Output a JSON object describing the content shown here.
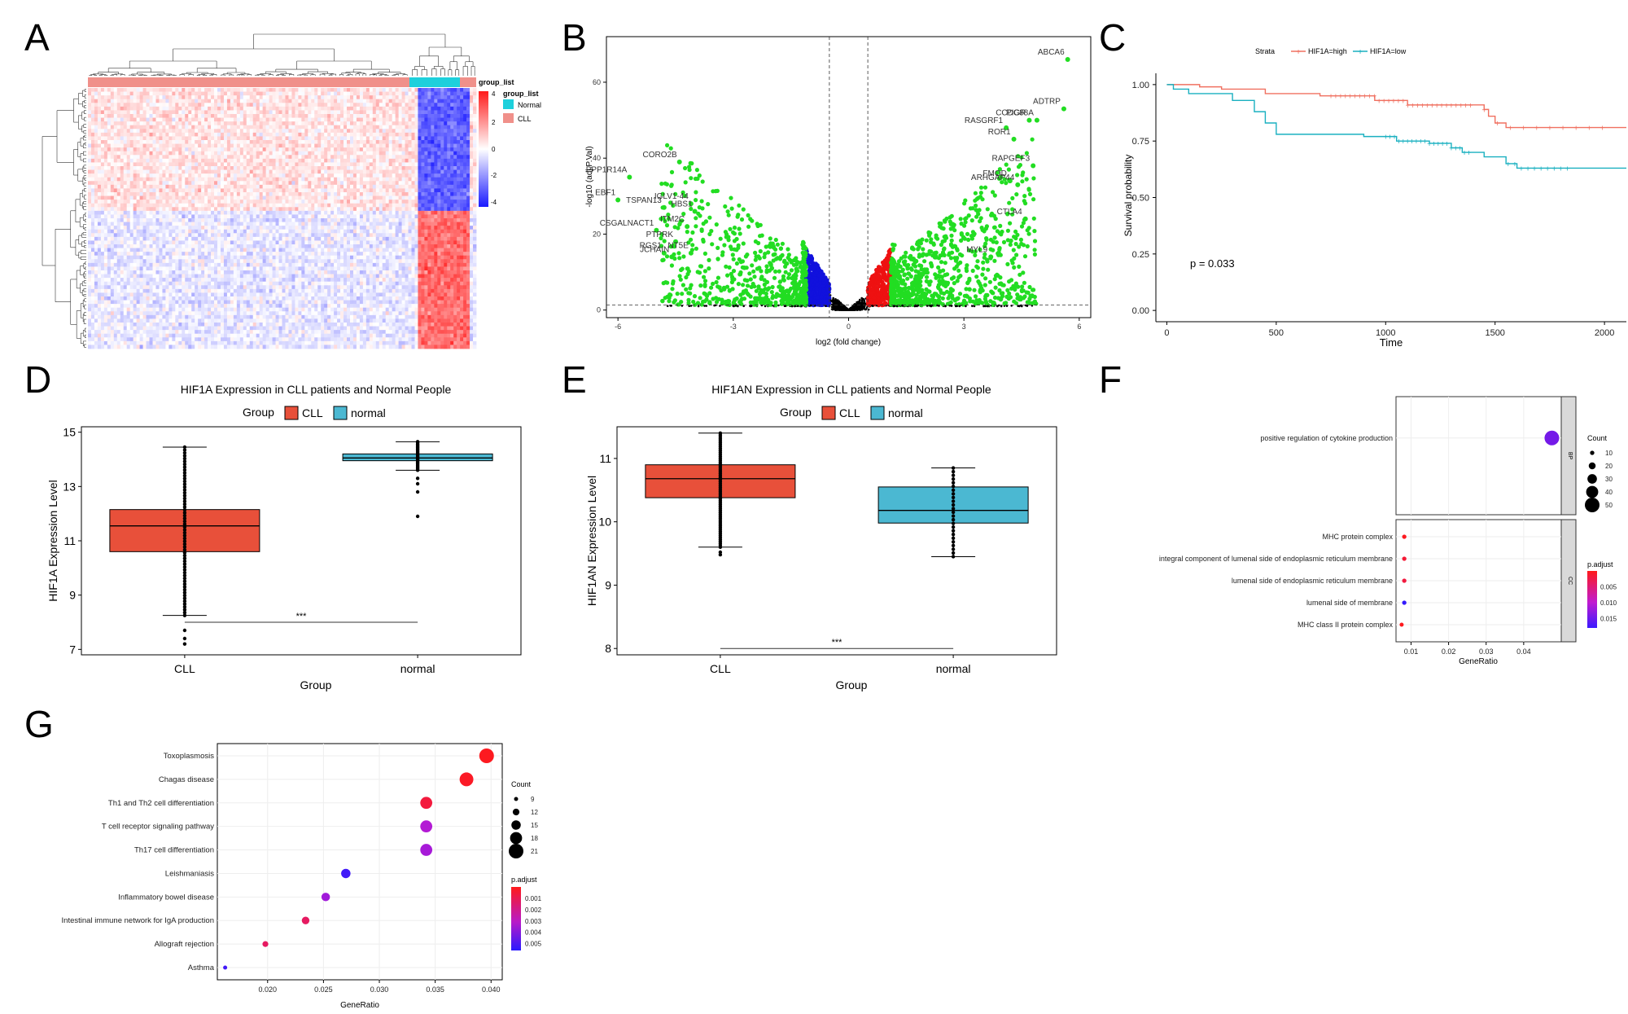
{
  "panel_letters": [
    "A",
    "B",
    "C",
    "D",
    "E",
    "F",
    "G"
  ],
  "colors": {
    "cll": "#e8503a",
    "normal": "#4bb8d2",
    "green": "#22dd22",
    "red": "#ee1111",
    "blue": "#1111dd",
    "km_high": "#f07060",
    "km_low": "#1ab0c0"
  },
  "chart_data": [
    {
      "panel": "A",
      "type": "heatmap",
      "legend_title": "group_list",
      "legend_entries": [
        "Normal",
        "CLL"
      ],
      "colorbar_ticks": [
        "4",
        "2",
        "0",
        "-2",
        "-4"
      ],
      "row_count": 70,
      "column_count": 120,
      "normal_column_fraction": 0.13
    },
    {
      "panel": "B",
      "type": "scatter",
      "xlabel": "log2 (fold change)",
      "ylabel": "-log10 (adj.P.Val)",
      "xlim": [
        -6.3,
        6.3
      ],
      "ylim": [
        -2,
        72
      ],
      "x_ticks": [
        -6,
        -3,
        0,
        3,
        6
      ],
      "y_ticks": [
        0,
        20,
        40,
        60
      ],
      "threshold_x": [
        -0.5,
        0.5
      ],
      "threshold_y": 1.3,
      "labeled_points": [
        {
          "label": "ABCA6",
          "x": 5.7,
          "y": 66
        },
        {
          "label": "ADTRP",
          "x": 5.6,
          "y": 53
        },
        {
          "label": "PIGR",
          "x": 4.7,
          "y": 50
        },
        {
          "label": "CCDC88A",
          "x": 4.9,
          "y": 50
        },
        {
          "label": "RASGRF1",
          "x": 4.1,
          "y": 48
        },
        {
          "label": "ROR1",
          "x": 4.3,
          "y": 45
        },
        {
          "label": "RAPGEF3",
          "x": 4.8,
          "y": 38
        },
        {
          "label": "FMOD",
          "x": 4.2,
          "y": 34
        },
        {
          "label": "ARHGAP44",
          "x": 4.4,
          "y": 33
        },
        {
          "label": "CTLA4",
          "x": 4.6,
          "y": 24
        },
        {
          "label": "MYL9",
          "x": 3.7,
          "y": 14
        },
        {
          "label": "CORO2B",
          "x": -4.4,
          "y": 39
        },
        {
          "label": "PPP1R14A",
          "x": -5.7,
          "y": 35
        },
        {
          "label": "EBF1",
          "x": -6.0,
          "y": 29
        },
        {
          "label": "IGLV1-44",
          "x": -4.1,
          "y": 28
        },
        {
          "label": "HBS1",
          "x": -4.0,
          "y": 26
        },
        {
          "label": "TSPAN13",
          "x": -4.8,
          "y": 27
        },
        {
          "label": "ITM2C",
          "x": -4.2,
          "y": 22
        },
        {
          "label": "CSGALNACT1",
          "x": -5.0,
          "y": 21
        },
        {
          "label": "PTPRK",
          "x": -4.5,
          "y": 18
        },
        {
          "label": "RGS1",
          "x": -4.8,
          "y": 15
        },
        {
          "label": "NT5E",
          "x": -4.1,
          "y": 15
        },
        {
          "label": "JCHAIN",
          "x": -4.6,
          "y": 14
        }
      ]
    },
    {
      "panel": "C",
      "type": "line",
      "legend_title": "Strata",
      "series": [
        {
          "name": "HIF1A=high",
          "points": [
            [
              0,
              1.0
            ],
            [
              100,
              1.0
            ],
            [
              150,
              0.99
            ],
            [
              250,
              0.98
            ],
            [
              450,
              0.96
            ],
            [
              700,
              0.95
            ],
            [
              950,
              0.93
            ],
            [
              1100,
              0.91
            ],
            [
              1450,
              0.89
            ],
            [
              1470,
              0.86
            ],
            [
              1500,
              0.83
            ],
            [
              1550,
              0.81
            ],
            [
              2100,
              0.81
            ]
          ]
        },
        {
          "name": "HIF1A=low",
          "points": [
            [
              0,
              1.0
            ],
            [
              30,
              0.98
            ],
            [
              100,
              0.96
            ],
            [
              300,
              0.93
            ],
            [
              400,
              0.88
            ],
            [
              450,
              0.83
            ],
            [
              500,
              0.78
            ],
            [
              700,
              0.78
            ],
            [
              900,
              0.77
            ],
            [
              1050,
              0.75
            ],
            [
              1200,
              0.74
            ],
            [
              1300,
              0.72
            ],
            [
              1350,
              0.7
            ],
            [
              1450,
              0.68
            ],
            [
              1550,
              0.65
            ],
            [
              1600,
              0.63
            ],
            [
              2100,
              0.63
            ]
          ]
        }
      ],
      "xlabel": "Time",
      "ylabel": "Survival probability",
      "x_ticks": [
        0,
        500,
        1000,
        1500,
        2000
      ],
      "y_ticks": [
        "0.00",
        "0.25",
        "0.50",
        "0.75",
        "1.00"
      ],
      "xlim": [
        -50,
        2100
      ],
      "ylim": [
        -0.05,
        1.05
      ],
      "annotation": "p = 0.033"
    },
    {
      "panel": "D",
      "type": "box",
      "title": "HIF1A Expression in CLL patients and Normal People",
      "legend_title": "Group",
      "legend_entries": [
        "CLL",
        "normal"
      ],
      "categories": [
        "CLL",
        "normal"
      ],
      "boxes": [
        {
          "min": 8.25,
          "q1": 10.6,
          "median": 11.55,
          "q3": 12.15,
          "max": 14.45,
          "outliers": [
            7.2,
            7.4,
            7.7
          ]
        },
        {
          "min": 13.6,
          "q1": 13.95,
          "median": 14.05,
          "q3": 14.2,
          "max": 14.65,
          "outliers": [
            11.9,
            12.8,
            13.1,
            13.3
          ]
        }
      ],
      "xlabel": "Group",
      "ylabel": "HIF1A Expression Level",
      "y_ticks": [
        7,
        9,
        11,
        13,
        15
      ],
      "ylim": [
        6.8,
        15.2
      ],
      "significance": "***",
      "sig_y": 8.0
    },
    {
      "panel": "E",
      "type": "box",
      "title": "HIF1AN Expression in CLL patients and Normal People",
      "legend_title": "Group",
      "legend_entries": [
        "CLL",
        "normal"
      ],
      "categories": [
        "CLL",
        "normal"
      ],
      "boxes": [
        {
          "min": 9.6,
          "q1": 10.38,
          "median": 10.68,
          "q3": 10.9,
          "max": 11.4,
          "outliers": [
            9.48,
            9.52
          ]
        },
        {
          "min": 9.45,
          "q1": 9.98,
          "median": 10.18,
          "q3": 10.55,
          "max": 10.85,
          "outliers": []
        }
      ],
      "xlabel": "Group",
      "ylabel": "HIF1AN Expression Level",
      "y_ticks": [
        8,
        9,
        10,
        11
      ],
      "ylim": [
        7.9,
        11.5
      ],
      "significance": "***",
      "sig_y": 8.0
    },
    {
      "panel": "F",
      "type": "scatter",
      "facets": [
        {
          "name": "BP",
          "terms": [
            {
              "term": "positive regulation of cytokine production",
              "gene_ratio": 0.0475,
              "count": 50,
              "p_adjust": 0.014
            }
          ]
        },
        {
          "name": "CC",
          "terms": [
            {
              "term": "MHC protein complex",
              "gene_ratio": 0.0082,
              "count": 10,
              "p_adjust": 0.0003
            },
            {
              "term": "integral component of lumenal side of endoplasmic reticulum membrane",
              "gene_ratio": 0.0082,
              "count": 10,
              "p_adjust": 0.0015
            },
            {
              "term": "lumenal side of endoplasmic reticulum membrane",
              "gene_ratio": 0.0082,
              "count": 10,
              "p_adjust": 0.002
            },
            {
              "term": "lumenal side of membrane",
              "gene_ratio": 0.0082,
              "count": 10,
              "p_adjust": 0.0175
            },
            {
              "term": "MHC class II protein complex",
              "gene_ratio": 0.0075,
              "count": 9,
              "p_adjust": 0.0002
            }
          ]
        }
      ],
      "xlabel": "GeneRatio",
      "x_ticks": [
        "0.01",
        "0.02",
        "0.03",
        "0.04"
      ],
      "xlim": [
        0.006,
        0.05
      ],
      "size_legend_title": "Count",
      "size_legend": [
        10,
        20,
        30,
        40,
        50
      ],
      "color_legend_title": "p.adjust",
      "color_legend": [
        "0.005",
        "0.010",
        "0.015"
      ],
      "color_range": [
        0.0,
        0.018
      ]
    },
    {
      "panel": "G",
      "type": "scatter",
      "terms": [
        {
          "term": "Toxoplasmosis",
          "gene_ratio": 0.0396,
          "count": 21,
          "p_adjust": 0.0001
        },
        {
          "term": "Chagas disease",
          "gene_ratio": 0.0378,
          "count": 20,
          "p_adjust": 0.0002
        },
        {
          "term": "Th1 and Th2 cell differentiation",
          "gene_ratio": 0.0342,
          "count": 18,
          "p_adjust": 0.0006
        },
        {
          "term": "T cell receptor signaling pathway",
          "gene_ratio": 0.0342,
          "count": 18,
          "p_adjust": 0.0033
        },
        {
          "term": "Th17 cell differentiation",
          "gene_ratio": 0.0342,
          "count": 18,
          "p_adjust": 0.0035
        },
        {
          "term": "Leishmaniasis",
          "gene_ratio": 0.027,
          "count": 15,
          "p_adjust": 0.0052
        },
        {
          "term": "Inflammatory bowel disease",
          "gene_ratio": 0.0252,
          "count": 14,
          "p_adjust": 0.0036
        },
        {
          "term": "Intestinal immune network for IgA production",
          "gene_ratio": 0.0234,
          "count": 13,
          "p_adjust": 0.0012
        },
        {
          "term": "Allograft rejection",
          "gene_ratio": 0.0198,
          "count": 11,
          "p_adjust": 0.0012
        },
        {
          "term": "Asthma",
          "gene_ratio": 0.0162,
          "count": 9,
          "p_adjust": 0.0052
        }
      ],
      "xlabel": "GeneRatio",
      "x_ticks": [
        "0.020",
        "0.025",
        "0.030",
        "0.035",
        "0.040"
      ],
      "xlim": [
        0.0155,
        0.041
      ],
      "size_legend_title": "Count",
      "size_legend": [
        9,
        12,
        15,
        18,
        21
      ],
      "color_legend_title": "p.adjust",
      "color_legend": [
        "0.001",
        "0.002",
        "0.003",
        "0.004",
        "0.005"
      ],
      "color_range": [
        0.0,
        0.0056
      ]
    }
  ]
}
